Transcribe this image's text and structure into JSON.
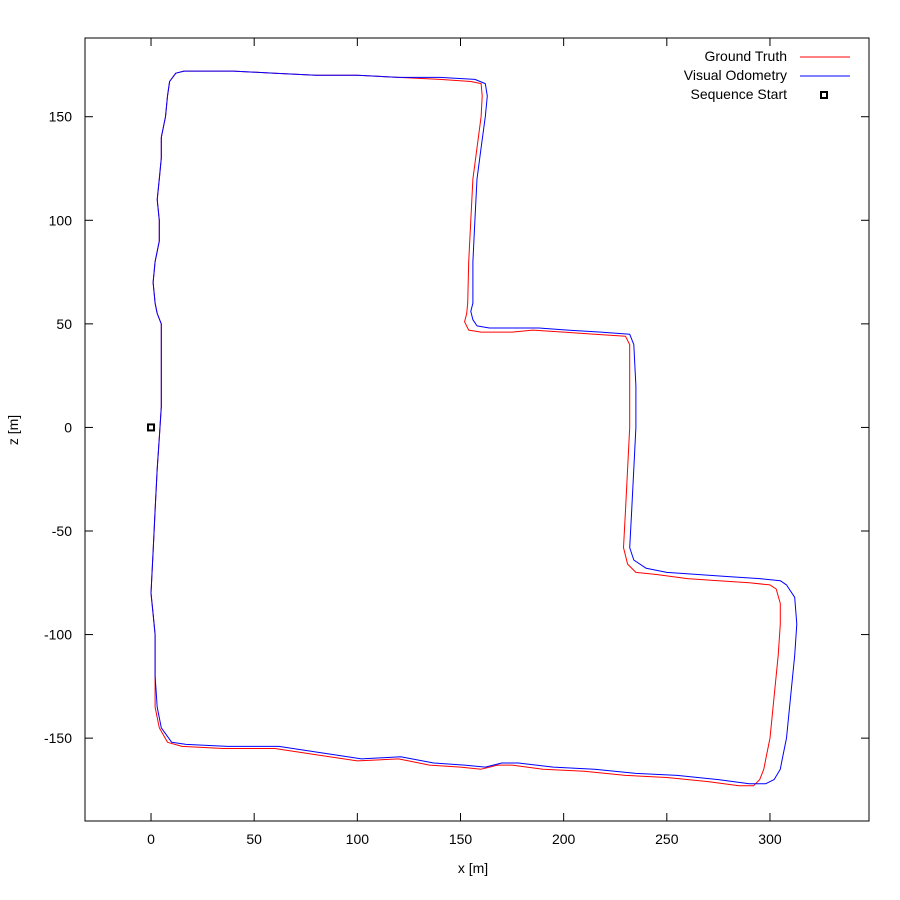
{
  "chart_data": {
    "type": "line",
    "xlabel": "x [m]",
    "ylabel": "z [m]",
    "xlim": [
      -32,
      348
    ],
    "ylim": [
      -190,
      188
    ],
    "x_ticks": [
      0,
      50,
      100,
      150,
      200,
      250,
      300
    ],
    "y_ticks": [
      -150,
      -100,
      -50,
      0,
      50,
      100,
      150
    ],
    "x_tick_labels": [
      "0",
      "50",
      "100",
      "150",
      "200",
      "250",
      "300"
    ],
    "y_tick_labels": [
      "-150",
      "-100",
      "-50",
      "0",
      "50",
      "100",
      "150"
    ],
    "grid": false,
    "legend_position": "top-right",
    "legend": {
      "ground_truth": "Ground Truth",
      "visual_odometry": "Visual Odometry",
      "sequence_start": "Sequence Start"
    },
    "series": [
      {
        "name": "Ground Truth",
        "color": "#ff0000",
        "x": [
          0,
          1,
          2,
          3,
          4,
          5,
          5,
          5,
          3,
          2,
          1,
          2,
          4,
          4,
          3,
          4,
          5,
          5,
          7,
          8,
          9,
          12,
          16,
          24,
          40,
          60,
          80,
          100,
          120,
          140,
          155,
          160,
          160.5,
          160,
          158,
          156,
          155,
          154,
          153.5,
          153,
          152,
          154,
          160,
          175,
          185,
          200,
          215,
          230,
          232,
          232,
          232,
          231,
          230,
          229,
          231,
          235,
          245,
          260,
          275,
          290,
          300,
          303,
          305,
          305,
          304,
          302,
          300,
          298,
          297,
          295,
          292,
          285,
          270,
          250,
          230,
          210,
          190,
          175,
          168,
          160,
          150,
          135,
          120,
          100,
          80,
          60,
          35,
          15,
          8,
          4,
          2,
          2,
          2,
          1,
          0
        ],
        "y": [
          -80,
          -60,
          -40,
          -20,
          -5,
          10,
          30,
          50,
          55,
          60,
          70,
          80,
          90,
          100,
          110,
          120,
          130,
          140,
          150,
          160,
          167,
          171,
          172,
          172,
          172,
          171,
          170,
          170,
          169,
          168,
          167,
          166,
          160,
          150,
          135,
          120,
          100,
          80,
          60,
          55,
          51,
          47,
          46,
          46,
          47,
          46,
          45,
          44,
          40,
          20,
          0,
          -20,
          -40,
          -58,
          -66,
          -70,
          -71,
          -73,
          -74,
          -75,
          -76,
          -78,
          -85,
          -95,
          -110,
          -130,
          -150,
          -160,
          -165,
          -170,
          -173,
          -173,
          -171,
          -169,
          -168,
          -166,
          -165,
          -163,
          -163,
          -165,
          -164,
          -163,
          -160,
          -161,
          -158,
          -155,
          -155,
          -154,
          -152,
          -145,
          -135,
          -120,
          -100,
          -90,
          -80
        ]
      },
      {
        "name": "Visual Odometry",
        "color": "#0000ff",
        "x": [
          0,
          1,
          2,
          3,
          4,
          5,
          5,
          5,
          3,
          2,
          1,
          2,
          4,
          4,
          3,
          4,
          5,
          5,
          7,
          8,
          9,
          12,
          16,
          24,
          40,
          60,
          80,
          100,
          120,
          140,
          157,
          162,
          163,
          162,
          160,
          158,
          157,
          156,
          156,
          155,
          156,
          158,
          164,
          178,
          188,
          202,
          218,
          232,
          234,
          235,
          235,
          234,
          233,
          232,
          234,
          240,
          250,
          265,
          280,
          295,
          305,
          308,
          312,
          313,
          312,
          310,
          308,
          306,
          305,
          302,
          298,
          290,
          275,
          255,
          235,
          215,
          195,
          178,
          170,
          162,
          152,
          137,
          121,
          102,
          82,
          62,
          37,
          17,
          10,
          5,
          3,
          2,
          2,
          1,
          0
        ],
        "y": [
          -80,
          -60,
          -40,
          -20,
          -5,
          10,
          30,
          50,
          55,
          60,
          70,
          80,
          90,
          100,
          110,
          120,
          130,
          140,
          150,
          160,
          167,
          171,
          172,
          172,
          172,
          171,
          170,
          170,
          169,
          169,
          168,
          166,
          160,
          150,
          135,
          120,
          100,
          80,
          60,
          56,
          52,
          49,
          48,
          48,
          48,
          47,
          46,
          45,
          40,
          20,
          0,
          -20,
          -40,
          -58,
          -64,
          -68,
          -70,
          -71,
          -72,
          -73,
          -74,
          -76,
          -82,
          -95,
          -110,
          -130,
          -150,
          -160,
          -165,
          -170,
          -172,
          -172,
          -170,
          -168,
          -167,
          -165,
          -164,
          -162,
          -162,
          -164,
          -163,
          -162,
          -159,
          -160,
          -157,
          -154,
          -154,
          -153,
          -152,
          -145,
          -135,
          -120,
          -100,
          -90,
          -80
        ]
      }
    ],
    "markers": [
      {
        "name": "Sequence Start",
        "x": 0,
        "y": 0
      }
    ]
  }
}
